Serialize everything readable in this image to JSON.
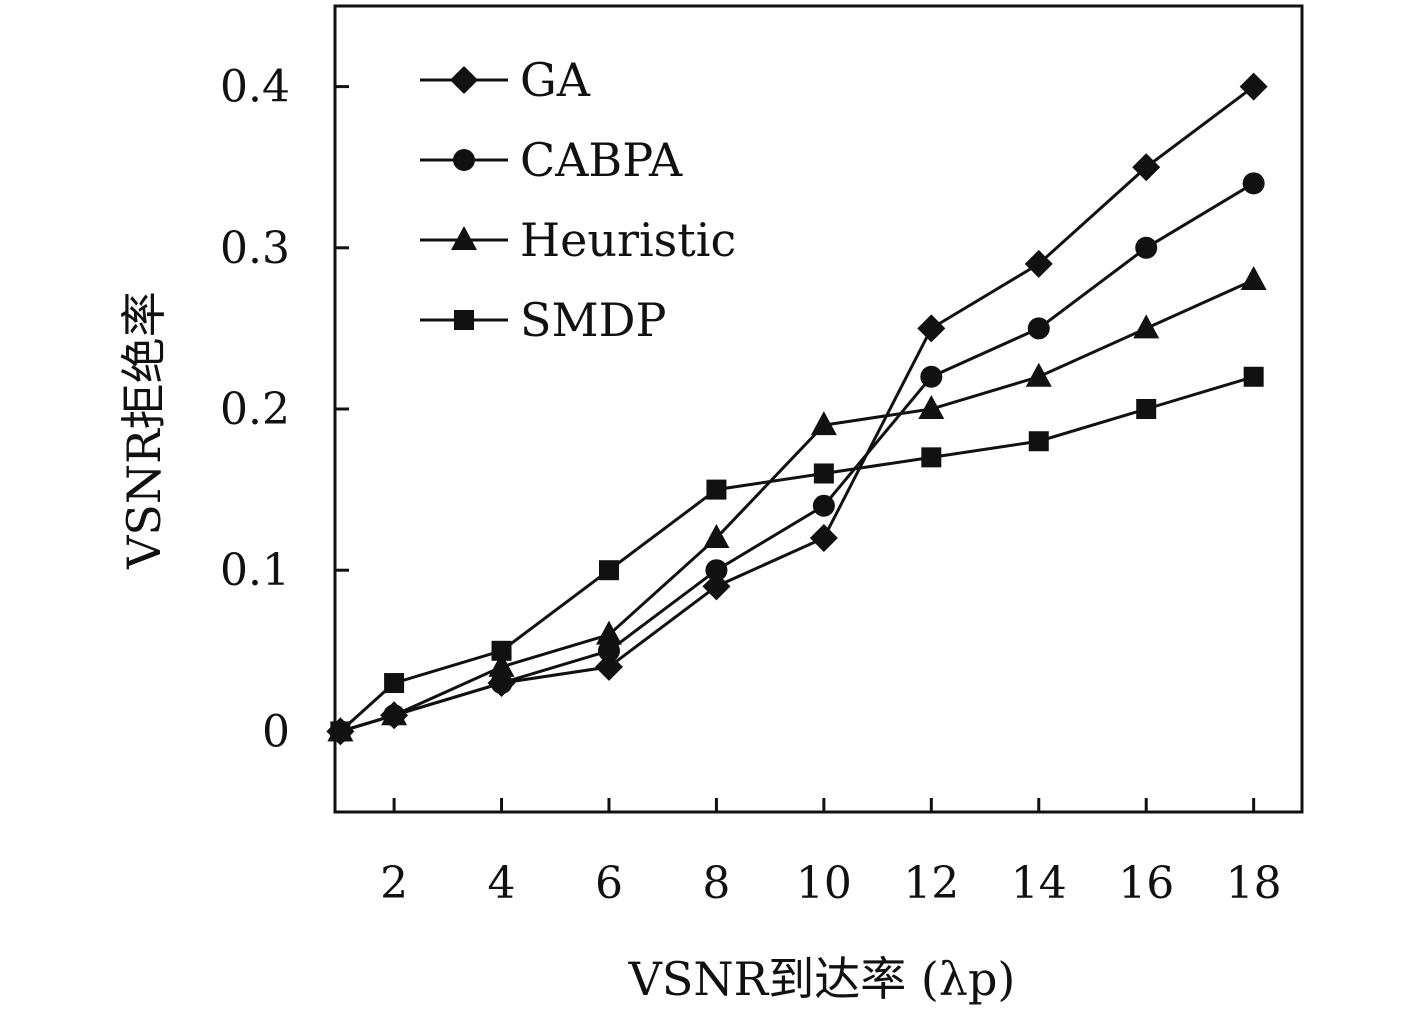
{
  "chart_data": {
    "type": "line",
    "title": "",
    "xlabel": "VSNR到达率 (λp)",
    "ylabel": "VSNR拒绝率",
    "xlim": [
      0.9,
      18.9
    ],
    "ylim": [
      -0.05,
      0.45
    ],
    "x": [
      1,
      2,
      4,
      6,
      8,
      10,
      12,
      14,
      16,
      18
    ],
    "xticks": [
      "2",
      "4",
      "6",
      "8",
      "10",
      "12",
      "14",
      "16",
      "18"
    ],
    "yticks": [
      "0",
      "0.1",
      "0.2",
      "0.3",
      "0.4"
    ],
    "grid": false,
    "legend_position": "top-left",
    "series": [
      {
        "name": "GA",
        "marker": "diamond",
        "values": [
          0,
          0.01,
          0.03,
          0.04,
          0.09,
          0.12,
          0.25,
          0.29,
          0.35,
          0.4
        ]
      },
      {
        "name": "CABPA",
        "marker": "circle",
        "values": [
          0,
          0.01,
          0.03,
          0.05,
          0.1,
          0.14,
          0.22,
          0.25,
          0.3,
          0.34
        ]
      },
      {
        "name": "Heuristic",
        "marker": "triangle",
        "values": [
          0,
          0.01,
          0.04,
          0.06,
          0.12,
          0.19,
          0.2,
          0.22,
          0.25,
          0.28
        ]
      },
      {
        "name": "SMDP",
        "marker": "square",
        "values": [
          0,
          0.03,
          0.05,
          0.1,
          0.15,
          0.16,
          0.17,
          0.18,
          0.2,
          0.22
        ]
      }
    ],
    "line_color": "#111111"
  }
}
